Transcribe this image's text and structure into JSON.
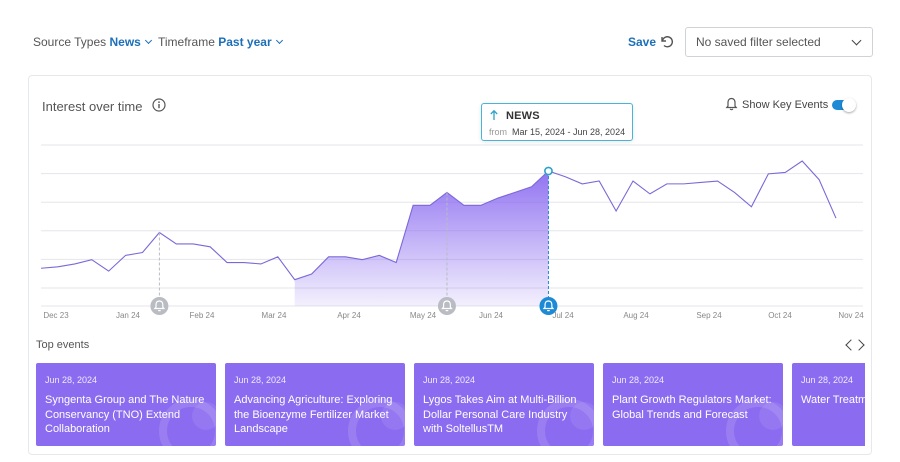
{
  "filters": {
    "source_types": {
      "label": "Source Types",
      "value": "News"
    },
    "timeframe": {
      "label": "Timeframe",
      "value": "Past year"
    }
  },
  "toolbar": {
    "save_label": "Save",
    "saved_filter_placeholder": "No saved filter selected"
  },
  "card": {
    "title": "Interest over time",
    "show_key_events_label": "Show Key Events",
    "show_key_events_on": true
  },
  "tooltip": {
    "title": "NEWS",
    "from_label": "from",
    "range": "Mar 15, 2024 - Jun 28, 2024"
  },
  "chart_data": {
    "type": "area",
    "x_tick_labels": [
      "Dec 23",
      "Jan 24",
      "Feb 24",
      "Mar 24",
      "Apr 24",
      "May 24",
      "Jun 24",
      "Jul 24",
      "Aug 24",
      "Sep 24",
      "Oct 24",
      "Nov 24"
    ],
    "y_range": [
      0,
      100
    ],
    "grid": true,
    "series": [
      {
        "values": [
          25,
          26,
          28,
          31,
          23,
          34,
          36,
          50,
          42,
          42,
          40,
          29,
          29,
          28,
          33,
          17,
          21,
          33,
          33,
          31,
          34,
          29,
          69,
          69,
          78,
          69,
          69,
          74,
          78,
          82,
          93,
          89,
          84,
          86,
          65,
          86,
          77,
          84,
          84,
          85,
          86,
          78,
          68,
          91,
          92,
          100,
          87,
          60
        ]
      }
    ],
    "highlighted_window": {
      "start_index": 15,
      "end_index": 30
    },
    "key_event_indices": [
      7,
      24,
      30
    ],
    "selected_point_index": 30
  },
  "top_events": {
    "title": "Top events",
    "items": [
      {
        "date": "Jun 28, 2024",
        "title": "Syngenta Group and The Nature Conservancy (TNO) Extend Collaboration"
      },
      {
        "date": "Jun 28, 2024",
        "title": "Advancing Agriculture: Exploring the Bioenzyme Fertilizer Market Landscape"
      },
      {
        "date": "Jun 28, 2024",
        "title": "Lygos Takes Aim at Multi-Billion Dollar Personal Care Industry with SoltellusTM"
      },
      {
        "date": "Jun 28, 2024",
        "title": "Plant Growth Regulators Market: Global Trends and Forecast"
      },
      {
        "date": "Jun 28, 2024",
        "title": "Water Treatment Market Trends"
      }
    ]
  },
  "colors": {
    "accent": "#1d6fb8",
    "area_fill": "#8b6cf0",
    "line": "#7b68d8",
    "event_card": "#8b6cf0",
    "key_event_active": "#1d8ad6"
  }
}
